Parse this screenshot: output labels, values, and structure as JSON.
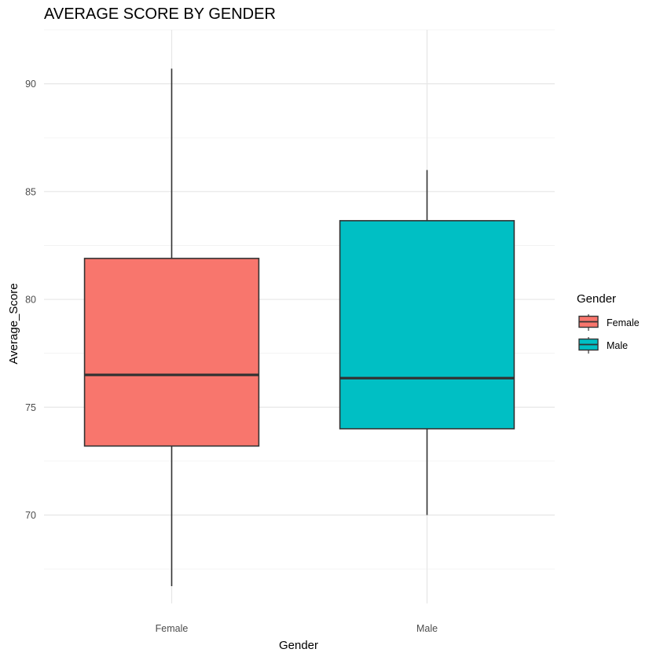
{
  "chart_data": {
    "type": "box",
    "title": "AVERAGE SCORE BY GENDER",
    "xlabel": "Gender",
    "ylabel": "Average_Score",
    "ylim": [
      65.9,
      92.5
    ],
    "yticks": [
      70,
      75,
      80,
      85,
      90
    ],
    "grid": true,
    "legend": {
      "title": "Gender",
      "position": "right"
    },
    "categories": [
      "Female",
      "Male"
    ],
    "series": [
      {
        "name": "Female",
        "color": "#F8766D",
        "whisker_low": 66.7,
        "q1": 73.2,
        "median": 76.5,
        "q3": 81.9,
        "whisker_high": 90.7
      },
      {
        "name": "Male",
        "color": "#00BFC4",
        "whisker_low": 70.0,
        "q1": 74.0,
        "median": 76.35,
        "q3": 83.65,
        "whisker_high": 86.0
      }
    ]
  }
}
